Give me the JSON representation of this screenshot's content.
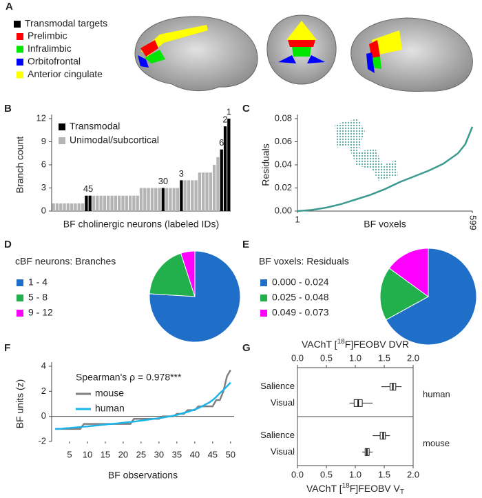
{
  "panel_labels": [
    "A",
    "B",
    "C",
    "D",
    "E",
    "F",
    "G"
  ],
  "legend_a": {
    "title": "Transmodal targets",
    "title_color": "#000000",
    "items": [
      {
        "name": "Prelimbic",
        "color": "#ff0000"
      },
      {
        "name": "Infralimbic",
        "color": "#00e600"
      },
      {
        "name": "Orbitofrontal",
        "color": "#0000ff"
      },
      {
        "name": "Anterior cingulate",
        "color": "#ffff00"
      }
    ]
  },
  "chart_data": [
    {
      "type": "bar",
      "ylabel": "Branch count",
      "xlabel": "BF cholinergic neurons (labeled IDs)",
      "categories": [
        null,
        null,
        null,
        null,
        null,
        null,
        null,
        null,
        null,
        "4",
        "5",
        null,
        null,
        null,
        null,
        null,
        null,
        null,
        null,
        null,
        null,
        null,
        null,
        null,
        null,
        null,
        null,
        null,
        null,
        null,
        "30",
        null,
        null,
        null,
        null,
        "3",
        null,
        null,
        null,
        null,
        null,
        null,
        null,
        null,
        null,
        null,
        "6",
        "2",
        "1"
      ],
      "series": [
        {
          "name": "Transmodal",
          "color": "#000000",
          "values": [
            null,
            null,
            null,
            null,
            null,
            null,
            null,
            null,
            null,
            2,
            2,
            null,
            null,
            null,
            null,
            null,
            null,
            null,
            null,
            null,
            null,
            null,
            null,
            null,
            null,
            null,
            null,
            null,
            null,
            null,
            3,
            null,
            null,
            null,
            null,
            4,
            null,
            null,
            null,
            null,
            null,
            null,
            null,
            null,
            null,
            null,
            8,
            11,
            12
          ]
        },
        {
          "name": "Unimodal/subcortical",
          "color": "#b4b4b4",
          "values": [
            1,
            1,
            1,
            1,
            1,
            1,
            1,
            1,
            1,
            null,
            null,
            2,
            2,
            2,
            2,
            2,
            2,
            2,
            2,
            2,
            2,
            2,
            2,
            2,
            3,
            3,
            3,
            3,
            3,
            3,
            null,
            3,
            3,
            3,
            3,
            null,
            4,
            4,
            4,
            4,
            5,
            5,
            5,
            5,
            6,
            7,
            null,
            null,
            null
          ]
        }
      ],
      "ylim": [
        0,
        12
      ],
      "yticks": [
        0,
        3,
        6,
        9,
        12
      ]
    },
    {
      "type": "line",
      "ylabel": "Residuals",
      "xlabel": "BF voxels",
      "x": [
        1,
        50,
        100,
        150,
        200,
        250,
        300,
        350,
        400,
        450,
        500,
        550,
        575,
        599
      ],
      "series": [
        {
          "color": "#3a9a90",
          "values": [
            0,
            0.001,
            0.003,
            0.006,
            0.01,
            0.014,
            0.019,
            0.025,
            0.03,
            0.035,
            0.041,
            0.05,
            0.058,
            0.073
          ]
        }
      ],
      "xlim": [
        1,
        599
      ],
      "xticks": [
        1,
        599
      ],
      "ylim": [
        0,
        0.08
      ],
      "yticks": [
        {
          "value": 0,
          "label": "0.00"
        },
        {
          "value": 0.02,
          "label": "0.02"
        },
        {
          "value": 0.04,
          "label": "0.04"
        },
        {
          "value": 0.06,
          "label": "0.06"
        },
        {
          "value": 0.08,
          "label": "0.08"
        }
      ]
    },
    {
      "type": "pie",
      "title": "cBF neurons: Branches",
      "categories": [
        "1 - 4",
        "5 - 8",
        "9 - 12"
      ],
      "values": [
        76,
        19,
        5
      ],
      "colors": [
        "#1f6fc8",
        "#22b04c",
        "#ff00ff"
      ]
    },
    {
      "type": "pie",
      "title": "BF voxels: Residuals",
      "categories": [
        "0.000 - 0.024",
        "0.025 - 0.048",
        "0.049 - 0.073"
      ],
      "values": [
        67,
        18,
        15
      ],
      "colors": [
        "#1f6fc8",
        "#22b04c",
        "#ff00ff"
      ]
    },
    {
      "type": "line",
      "annotation": "Spearman's ρ = 0.978***",
      "ylabel": "BF units (z)",
      "xlabel": "BF observations",
      "x": [
        1,
        2,
        3,
        4,
        5,
        6,
        7,
        8,
        9,
        10,
        11,
        12,
        13,
        14,
        15,
        16,
        17,
        18,
        19,
        20,
        21,
        22,
        23,
        24,
        25,
        26,
        27,
        28,
        29,
        30,
        31,
        32,
        33,
        34,
        35,
        36,
        37,
        38,
        39,
        40,
        41,
        42,
        43,
        44,
        45,
        46,
        47,
        48,
        49,
        50
      ],
      "series": [
        {
          "name": "mouse",
          "color": "#808080",
          "values": [
            -1,
            -1,
            -1,
            -1,
            -1,
            -1,
            -1,
            -1,
            -0.6,
            -0.6,
            -0.6,
            -0.6,
            -0.6,
            -0.6,
            -0.6,
            -0.6,
            -0.6,
            -0.6,
            -0.6,
            -0.6,
            -0.6,
            -0.6,
            -0.2,
            -0.2,
            -0.2,
            -0.2,
            -0.2,
            -0.2,
            -0.2,
            -0.2,
            0,
            0,
            0,
            0,
            0.2,
            0.2,
            0.2,
            0.5,
            0.5,
            0.5,
            0.8,
            0.8,
            0.8,
            0.8,
            0.8,
            1.3,
            1.3,
            2,
            3.2,
            3.7
          ]
        },
        {
          "name": "human",
          "color": "#1ab4e8",
          "values": [
            -1,
            -1,
            -0.98,
            -0.95,
            -0.93,
            -0.9,
            -0.88,
            -0.85,
            -0.82,
            -0.8,
            -0.77,
            -0.74,
            -0.71,
            -0.68,
            -0.65,
            -0.62,
            -0.6,
            -0.57,
            -0.54,
            -0.51,
            -0.48,
            -0.45,
            -0.42,
            -0.38,
            -0.34,
            -0.3,
            -0.26,
            -0.22,
            -0.18,
            -0.14,
            -0.1,
            -0.05,
            0,
            0.05,
            0.12,
            0.2,
            0.28,
            0.36,
            0.45,
            0.55,
            0.66,
            0.8,
            0.95,
            1.1,
            1.3,
            1.55,
            1.85,
            2.1,
            2.4,
            2.7
          ]
        }
      ],
      "xlim": [
        0,
        51
      ],
      "xticks": [
        5,
        10,
        15,
        20,
        25,
        30,
        35,
        40,
        45,
        50
      ],
      "ylim": [
        -2,
        4
      ],
      "yticks": [
        -2,
        0,
        2,
        4
      ],
      "hline": 0
    },
    {
      "type": "box",
      "xlabel_top": {
        "prefix": "VAChT [",
        "sup": "18",
        "suffix": "F]FEOBV DVR"
      },
      "xlabel_bottom": {
        "prefix": "VAChT [",
        "sup": "18",
        "suffix": "F]FEOBV V",
        "sub": "T"
      },
      "groups": [
        {
          "name": "human",
          "boxes": [
            {
              "category": "Salience",
              "min": 1.45,
              "q1": 1.6,
              "median": 1.65,
              "q3": 1.7,
              "max": 1.8
            },
            {
              "category": "Visual",
              "min": 0.9,
              "q1": 0.98,
              "median": 1.05,
              "q3": 1.12,
              "max": 1.3
            }
          ]
        },
        {
          "name": "mouse",
          "boxes": [
            {
              "category": "Salience",
              "min": 1.3,
              "q1": 1.43,
              "median": 1.48,
              "q3": 1.52,
              "max": 1.6
            },
            {
              "category": "Visual",
              "min": 1.12,
              "q1": 1.17,
              "median": 1.2,
              "q3": 1.24,
              "max": 1.3
            }
          ]
        }
      ],
      "xlim": [
        0,
        2
      ],
      "xticks": [
        {
          "value": 0,
          "label": "0.0"
        },
        {
          "value": 0.5,
          "label": "0.5"
        },
        {
          "value": 1,
          "label": "1.0"
        },
        {
          "value": 1.5,
          "label": "1.5"
        },
        {
          "value": 2,
          "label": "2.0"
        }
      ]
    }
  ]
}
